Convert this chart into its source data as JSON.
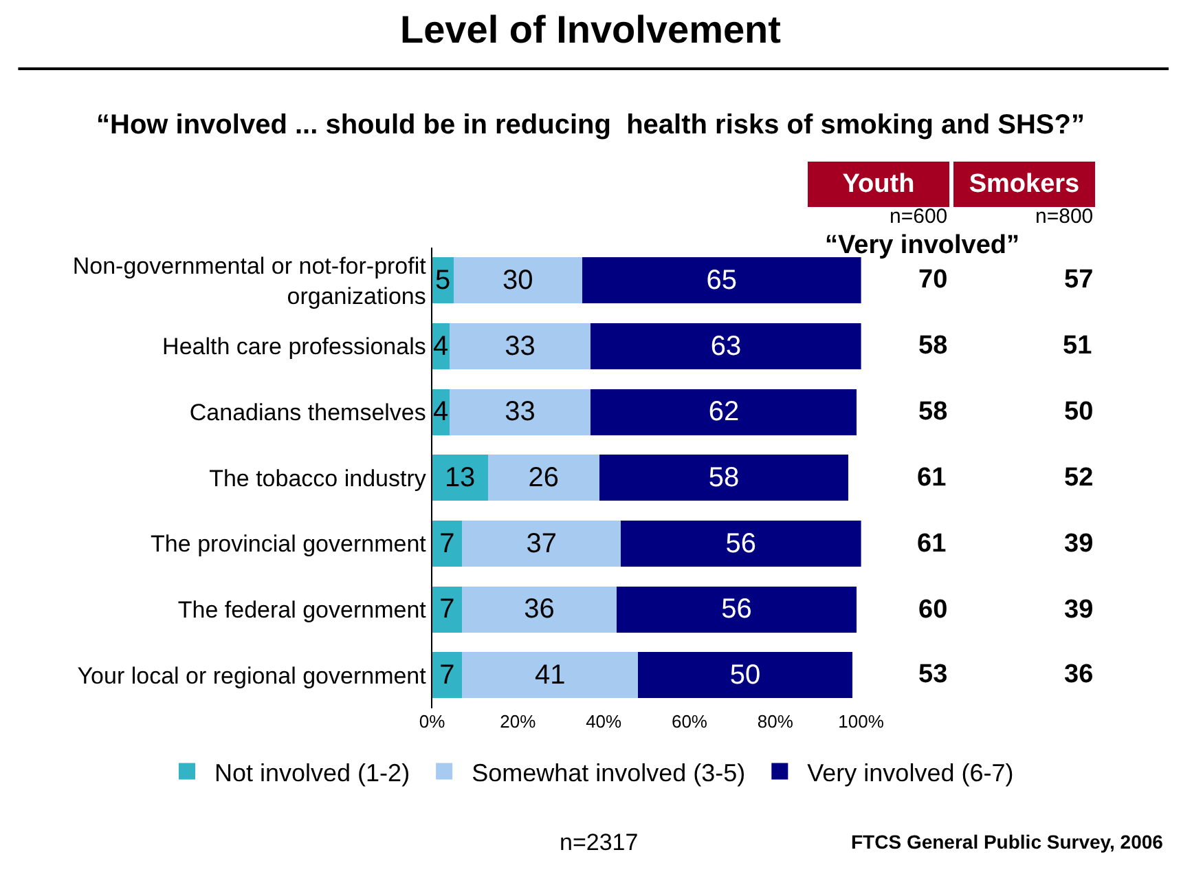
{
  "chart_data": {
    "type": "bar",
    "orientation": "horizontal",
    "stacked": true,
    "data_labels": true,
    "title": "Level of Involvement",
    "subtitle": "“How involved ... should be in reducing  health risks of smoking and SHS?”",
    "categories": [
      "Non-governmental or not-for-profit organizations",
      "Health care professionals",
      "Canadians themselves",
      "The tobacco industry",
      "The provincial government",
      "The federal government",
      "Your local or regional government"
    ],
    "series": [
      {
        "name": "Not involved (1-2)",
        "color": "#33b3c6",
        "values": [
          5,
          4,
          4,
          13,
          7,
          7,
          7
        ]
      },
      {
        "name": "Somewhat involved (3-5)",
        "color": "#a6caf0",
        "values": [
          30,
          33,
          33,
          26,
          37,
          36,
          41
        ]
      },
      {
        "name": "Very involved (6-7)",
        "color": "#000080",
        "values": [
          65,
          63,
          62,
          58,
          56,
          56,
          50
        ]
      }
    ],
    "xlim": [
      0,
      100
    ],
    "xticks": [
      {
        "value": 0,
        "label": "0%"
      },
      {
        "value": 20,
        "label": "20%"
      },
      {
        "value": 40,
        "label": "40%"
      },
      {
        "value": 60,
        "label": "60%"
      },
      {
        "value": 80,
        "label": "80%"
      },
      {
        "value": 100,
        "label": "100%"
      }
    ],
    "legend": "bottom",
    "annotations": [
      "Youth",
      "Smokers",
      "n=600",
      "n=800",
      "“Very involved”",
      "70",
      "57",
      "58",
      "51",
      "58",
      "50",
      "61",
      "52",
      "61",
      "39",
      "60",
      "39",
      "53",
      "36",
      "n=2317",
      "FTCS General Public Survey, 2006"
    ]
  }
}
